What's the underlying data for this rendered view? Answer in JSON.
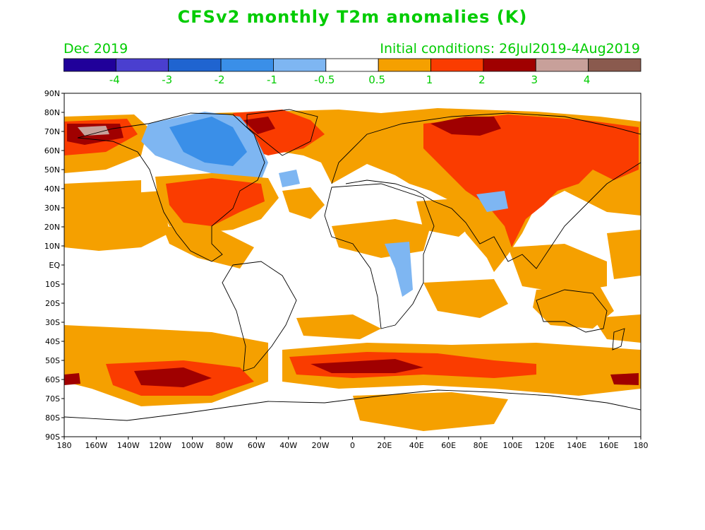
{
  "title": "CFSv2 monthly T2m anomalies (K)",
  "valid_month": "Dec 2019",
  "initial_conditions": "Initial conditions: 26Jul2019-4Aug2019",
  "colorbar": {
    "bins": [
      {
        "color": "#20009a"
      },
      {
        "color": "#4a3fcf"
      },
      {
        "color": "#1f64d0"
      },
      {
        "color": "#3a8fe8"
      },
      {
        "color": "#7eb6f2"
      },
      {
        "color": "#ffffff"
      },
      {
        "color": "#f5a000"
      },
      {
        "color": "#fa3c00"
      },
      {
        "color": "#a00000"
      },
      {
        "color": "#c8a09a"
      },
      {
        "color": "#8a5a4e"
      }
    ],
    "labels": [
      "-4",
      "-3",
      "-2",
      "-1",
      "-0.5",
      "0.5",
      "1",
      "2",
      "3",
      "4"
    ]
  },
  "axes": {
    "lat_labels": [
      "90N",
      "80N",
      "70N",
      "60N",
      "50N",
      "40N",
      "30N",
      "20N",
      "10N",
      "EQ",
      "10S",
      "20S",
      "30S",
      "40S",
      "50S",
      "60S",
      "70S",
      "80S",
      "90S"
    ],
    "lon_labels": [
      "180",
      "160W",
      "140W",
      "120W",
      "100W",
      "80W",
      "60W",
      "40W",
      "20W",
      "0",
      "20E",
      "40E",
      "60E",
      "80E",
      "100E",
      "120E",
      "140E",
      "160E",
      "180"
    ]
  }
}
